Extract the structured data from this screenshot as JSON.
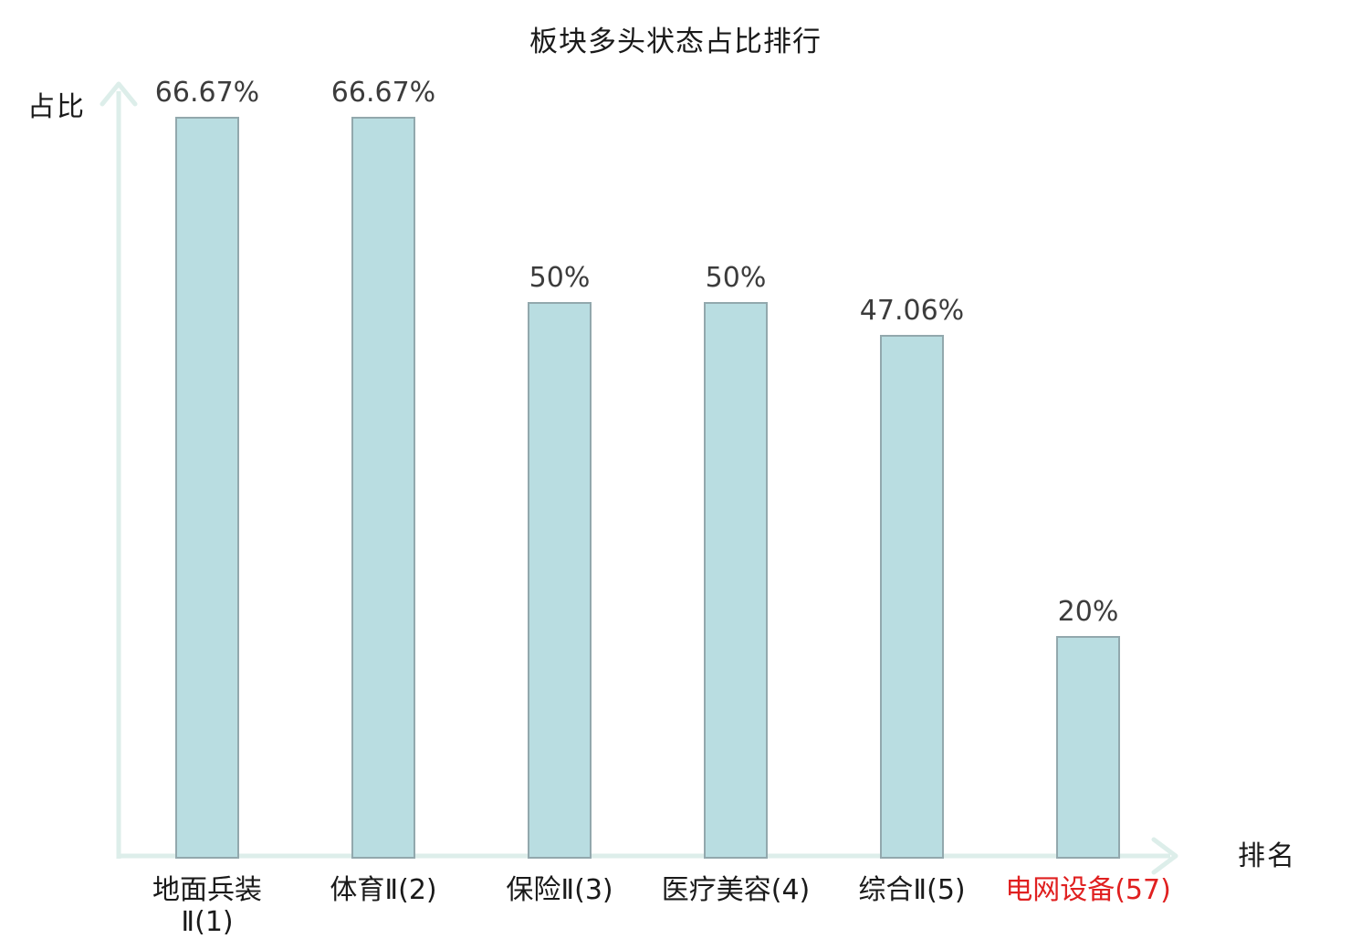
{
  "page": {
    "background": "#ffffff"
  },
  "chart_data": {
    "type": "bar",
    "title": "板块多头状态占比排行",
    "xlabel": "排名",
    "ylabel": "占比",
    "categories": [
      "地面兵装\nⅡ(1)",
      "体育Ⅱ(2)",
      "保险Ⅱ(3)",
      "医疗美容(4)",
      "综合Ⅱ(5)",
      "电网设备(57)"
    ],
    "values": [
      66.67,
      66.67,
      50,
      50,
      47.06,
      20
    ],
    "value_labels": [
      "66.67%",
      "66.67%",
      "50%",
      "50%",
      "47.06%",
      "20%"
    ],
    "highlight_index": 5,
    "ylim": [
      0,
      70
    ],
    "grid": false,
    "legend": false,
    "axis_arrows": true,
    "colors": {
      "bar_fill": "#b9dde1",
      "bar_border": "#92a8ad",
      "axis": "#ddeeea",
      "title_text": "#1a1a1a",
      "value_text": "#3c3c3c",
      "category_text": "#1a1a1a",
      "highlight_text": "#e02020"
    }
  }
}
